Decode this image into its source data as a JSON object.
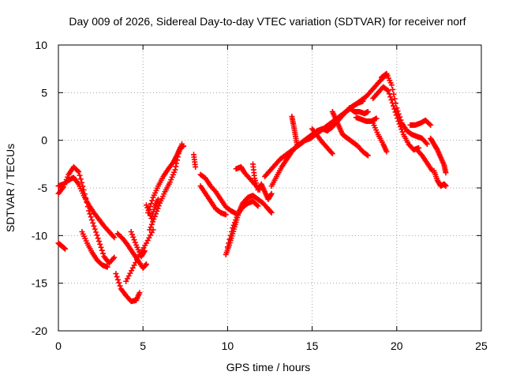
{
  "chart_data": {
    "type": "scatter",
    "title": "Day 009 of 2026, Sidereal Day-to-day VTEC variation (SDTVAR) for receiver norf",
    "xlabel": "GPS time / hours",
    "ylabel": "SDTVAR / TECUs",
    "xlim": [
      0,
      25
    ],
    "ylim": [
      -20,
      10
    ],
    "xticks": [
      0,
      5,
      10,
      15,
      20,
      25
    ],
    "yticks": [
      -20,
      -15,
      -10,
      -5,
      0,
      5,
      10
    ],
    "xtick_labels": [
      "0",
      "5",
      "10",
      "15",
      "20",
      "25"
    ],
    "ytick_labels": [
      "-20",
      "-15",
      "-10",
      "-5",
      "0",
      "5",
      "10"
    ],
    "grid": true,
    "marker": "+",
    "colors": {
      "series": "#ff0000",
      "grid": "#a0a0a0",
      "axis": "#000000"
    },
    "series": [
      {
        "points": [
          [
            0.0,
            -4.8
          ],
          [
            0.3,
            -4.6
          ],
          [
            0.6,
            -4.2
          ],
          [
            0.9,
            -3.9
          ],
          [
            1.2,
            -4.6
          ],
          [
            1.5,
            -5.8
          ],
          [
            1.8,
            -6.8
          ],
          [
            2.1,
            -7.6
          ],
          [
            2.4,
            -8.3
          ],
          [
            2.7,
            -9.0
          ],
          [
            3.0,
            -9.6
          ],
          [
            3.3,
            -10.2
          ]
        ]
      },
      {
        "points": [
          [
            0.0,
            -5.6
          ],
          [
            0.3,
            -4.9
          ],
          [
            0.6,
            -3.6
          ],
          [
            0.9,
            -2.8
          ],
          [
            1.2,
            -3.3
          ],
          [
            1.5,
            -5.2
          ],
          [
            1.8,
            -7.4
          ],
          [
            2.1,
            -9.0
          ],
          [
            2.4,
            -10.6
          ],
          [
            2.7,
            -12.2
          ],
          [
            3.0,
            -12.9
          ],
          [
            3.3,
            -12.3
          ]
        ]
      },
      {
        "points": [
          [
            0.0,
            -10.8
          ],
          [
            0.2,
            -11.1
          ],
          [
            0.4,
            -11.4
          ]
        ]
      },
      {
        "points": [
          [
            1.4,
            -9.6
          ],
          [
            1.7,
            -10.8
          ],
          [
            2.0,
            -11.8
          ],
          [
            2.3,
            -12.6
          ],
          [
            2.6,
            -13.1
          ],
          [
            2.9,
            -13.3
          ]
        ]
      },
      {
        "points": [
          [
            3.4,
            -14.0
          ],
          [
            3.7,
            -15.6
          ],
          [
            4.0,
            -16.3
          ],
          [
            4.3,
            -16.9
          ],
          [
            4.6,
            -16.8
          ],
          [
            4.8,
            -16.0
          ]
        ]
      },
      {
        "points": [
          [
            4.0,
            -14.8
          ],
          [
            4.4,
            -13.4
          ],
          [
            4.8,
            -12.0
          ],
          [
            5.2,
            -10.8
          ],
          [
            5.6,
            -9.4
          ]
        ]
      },
      {
        "points": [
          [
            3.5,
            -9.8
          ],
          [
            3.8,
            -10.3
          ],
          [
            4.1,
            -11.0
          ],
          [
            4.4,
            -11.8
          ],
          [
            4.7,
            -12.6
          ],
          [
            5.0,
            -13.4
          ],
          [
            5.2,
            -13.0
          ]
        ]
      },
      {
        "points": [
          [
            4.3,
            -9.6
          ],
          [
            4.6,
            -11.0
          ],
          [
            4.9,
            -12.2
          ],
          [
            5.1,
            -11.6
          ]
        ]
      },
      {
        "points": [
          [
            5.3,
            -7.6
          ],
          [
            5.6,
            -6.0
          ],
          [
            5.9,
            -4.8
          ],
          [
            6.2,
            -3.8
          ],
          [
            6.5,
            -3.0
          ],
          [
            6.8,
            -2.3
          ],
          [
            7.0,
            -1.6
          ],
          [
            7.2,
            -0.8
          ],
          [
            7.4,
            -0.6
          ]
        ]
      },
      {
        "points": [
          [
            5.4,
            -9.4
          ],
          [
            5.7,
            -8.0
          ],
          [
            6.0,
            -6.6
          ],
          [
            6.3,
            -5.4
          ],
          [
            6.6,
            -4.4
          ],
          [
            6.9,
            -3.1
          ],
          [
            7.1,
            -1.4
          ],
          [
            7.3,
            -0.4
          ]
        ]
      },
      {
        "points": [
          [
            5.2,
            -6.8
          ],
          [
            5.5,
            -8.2
          ],
          [
            5.7,
            -7.0
          ],
          [
            5.9,
            -6.2
          ]
        ]
      },
      {
        "points": [
          [
            8.0,
            -1.5
          ],
          [
            8.1,
            -2.8
          ]
        ]
      },
      {
        "points": [
          [
            8.4,
            -3.6
          ],
          [
            8.7,
            -4.0
          ],
          [
            9.0,
            -4.8
          ],
          [
            9.3,
            -5.4
          ],
          [
            9.6,
            -6.2
          ],
          [
            9.9,
            -7.0
          ],
          [
            10.2,
            -7.4
          ],
          [
            10.5,
            -7.7
          ]
        ]
      },
      {
        "points": [
          [
            8.4,
            -4.8
          ],
          [
            8.7,
            -5.6
          ],
          [
            9.0,
            -6.4
          ],
          [
            9.3,
            -7.2
          ],
          [
            9.6,
            -7.6
          ],
          [
            9.9,
            -7.8
          ]
        ]
      },
      {
        "points": [
          [
            9.9,
            -12.0
          ],
          [
            10.1,
            -11.0
          ],
          [
            10.3,
            -9.8
          ],
          [
            10.5,
            -8.6
          ],
          [
            10.7,
            -7.4
          ],
          [
            10.9,
            -6.6
          ],
          [
            11.2,
            -6.0
          ],
          [
            11.5,
            -5.8
          ],
          [
            11.8,
            -6.2
          ],
          [
            12.1,
            -6.6
          ],
          [
            12.4,
            -7.2
          ],
          [
            12.6,
            -7.6
          ]
        ]
      },
      {
        "points": [
          [
            10.0,
            -11.2
          ],
          [
            10.3,
            -9.2
          ],
          [
            10.6,
            -7.8
          ],
          [
            10.9,
            -7.0
          ],
          [
            11.2,
            -6.6
          ],
          [
            11.5,
            -6.4
          ],
          [
            11.8,
            -6.9
          ]
        ]
      },
      {
        "points": [
          [
            10.5,
            -3.0
          ],
          [
            10.8,
            -2.8
          ],
          [
            11.0,
            -3.4
          ],
          [
            11.3,
            -4.0
          ],
          [
            11.6,
            -4.6
          ],
          [
            11.9,
            -5.2
          ]
        ]
      },
      {
        "points": [
          [
            11.5,
            -2.5
          ],
          [
            11.6,
            -4.0
          ],
          [
            11.8,
            -5.2
          ],
          [
            12.0,
            -4.6
          ],
          [
            12.2,
            -5.4
          ],
          [
            12.4,
            -6.2
          ],
          [
            12.6,
            -5.6
          ]
        ]
      },
      {
        "points": [
          [
            12.2,
            -3.8
          ],
          [
            12.5,
            -3.2
          ],
          [
            12.8,
            -2.6
          ],
          [
            13.1,
            -2.0
          ],
          [
            13.4,
            -1.6
          ],
          [
            13.7,
            -1.2
          ],
          [
            14.0,
            -0.8
          ],
          [
            14.3,
            -0.4
          ],
          [
            14.6,
            0.0
          ],
          [
            14.9,
            0.2
          ],
          [
            15.2,
            0.6
          ],
          [
            15.5,
            1.0
          ],
          [
            15.8,
            1.4
          ],
          [
            16.1,
            1.8
          ],
          [
            16.4,
            2.2
          ],
          [
            16.7,
            2.6
          ],
          [
            17.0,
            3.0
          ],
          [
            17.3,
            3.4
          ],
          [
            17.6,
            3.8
          ],
          [
            17.9,
            4.2
          ],
          [
            18.2,
            4.6
          ],
          [
            18.5,
            5.2
          ],
          [
            18.8,
            5.8
          ],
          [
            19.1,
            6.4
          ],
          [
            19.4,
            6.9
          ]
        ]
      },
      {
        "points": [
          [
            12.6,
            -4.8
          ],
          [
            12.9,
            -3.8
          ],
          [
            13.2,
            -2.8
          ],
          [
            13.5,
            -2.0
          ],
          [
            13.8,
            -1.2
          ],
          [
            14.1,
            -0.6
          ],
          [
            14.4,
            -0.2
          ],
          [
            14.7,
            0.2
          ],
          [
            15.0,
            0.6
          ],
          [
            15.3,
            1.0
          ],
          [
            15.6,
            1.2
          ],
          [
            15.9,
            1.0
          ],
          [
            16.2,
            1.4
          ],
          [
            16.5,
            2.0
          ],
          [
            16.8,
            2.6
          ],
          [
            17.1,
            3.2
          ],
          [
            17.4,
            3.6
          ],
          [
            17.7,
            3.9
          ],
          [
            18.0,
            4.1
          ]
        ]
      },
      {
        "points": [
          [
            13.8,
            2.5
          ],
          [
            13.9,
            1.6
          ],
          [
            14.0,
            0.6
          ],
          [
            14.1,
            -0.4
          ]
        ]
      },
      {
        "points": [
          [
            15.0,
            1.2
          ],
          [
            15.3,
            0.5
          ],
          [
            15.6,
            -0.2
          ],
          [
            15.9,
            -0.8
          ],
          [
            16.2,
            -1.4
          ]
        ]
      },
      {
        "points": [
          [
            16.2,
            3.0
          ],
          [
            16.4,
            2.2
          ],
          [
            16.6,
            1.4
          ],
          [
            16.8,
            0.6
          ],
          [
            17.1,
            0.2
          ],
          [
            17.4,
            -0.2
          ],
          [
            17.7,
            -0.6
          ],
          [
            18.0,
            -1.2
          ],
          [
            18.3,
            -1.6
          ]
        ]
      },
      {
        "points": [
          [
            17.2,
            3.4
          ],
          [
            17.5,
            3.0
          ],
          [
            17.8,
            3.0
          ],
          [
            18.1,
            2.8
          ],
          [
            18.3,
            3.0
          ]
        ]
      },
      {
        "points": [
          [
            17.6,
            2.4
          ],
          [
            17.9,
            2.2
          ],
          [
            18.2,
            2.0
          ],
          [
            18.5,
            2.0
          ],
          [
            18.8,
            2.3
          ]
        ]
      },
      {
        "points": [
          [
            18.6,
            4.4
          ],
          [
            18.9,
            5.0
          ],
          [
            19.2,
            5.6
          ],
          [
            19.5,
            5.2
          ],
          [
            19.8,
            3.6
          ],
          [
            20.1,
            2.0
          ],
          [
            20.4,
            0.6
          ],
          [
            20.7,
            -0.4
          ],
          [
            21.0,
            -1.0
          ],
          [
            21.3,
            -0.8
          ]
        ]
      },
      {
        "points": [
          [
            19.1,
            6.6
          ],
          [
            19.4,
            7.0
          ],
          [
            19.7,
            5.8
          ],
          [
            20.0,
            3.4
          ],
          [
            20.3,
            1.8
          ],
          [
            20.6,
            1.0
          ],
          [
            20.9,
            0.6
          ],
          [
            21.2,
            0.4
          ],
          [
            21.5,
            0.2
          ],
          [
            21.8,
            -0.4
          ]
        ]
      },
      {
        "points": [
          [
            18.6,
            1.8
          ],
          [
            18.9,
            0.6
          ],
          [
            19.2,
            -0.4
          ],
          [
            19.4,
            -1.2
          ]
        ]
      },
      {
        "points": [
          [
            20.8,
            1.6
          ],
          [
            21.1,
            1.6
          ],
          [
            21.4,
            1.8
          ],
          [
            21.7,
            2.1
          ],
          [
            22.0,
            1.6
          ]
        ]
      },
      {
        "points": [
          [
            21.2,
            -1.0
          ],
          [
            21.5,
            -1.6
          ],
          [
            21.8,
            -2.4
          ],
          [
            22.1,
            -3.2
          ]
        ]
      },
      {
        "points": [
          [
            22.0,
            0.2
          ],
          [
            22.2,
            -0.4
          ],
          [
            22.4,
            -1.0
          ],
          [
            22.6,
            -1.8
          ],
          [
            22.8,
            -2.6
          ],
          [
            22.9,
            -3.4
          ]
        ]
      },
      {
        "points": [
          [
            22.2,
            -3.2
          ],
          [
            22.4,
            -4.2
          ],
          [
            22.6,
            -4.8
          ],
          [
            22.8,
            -4.6
          ],
          [
            22.9,
            -4.8
          ]
        ]
      }
    ]
  }
}
